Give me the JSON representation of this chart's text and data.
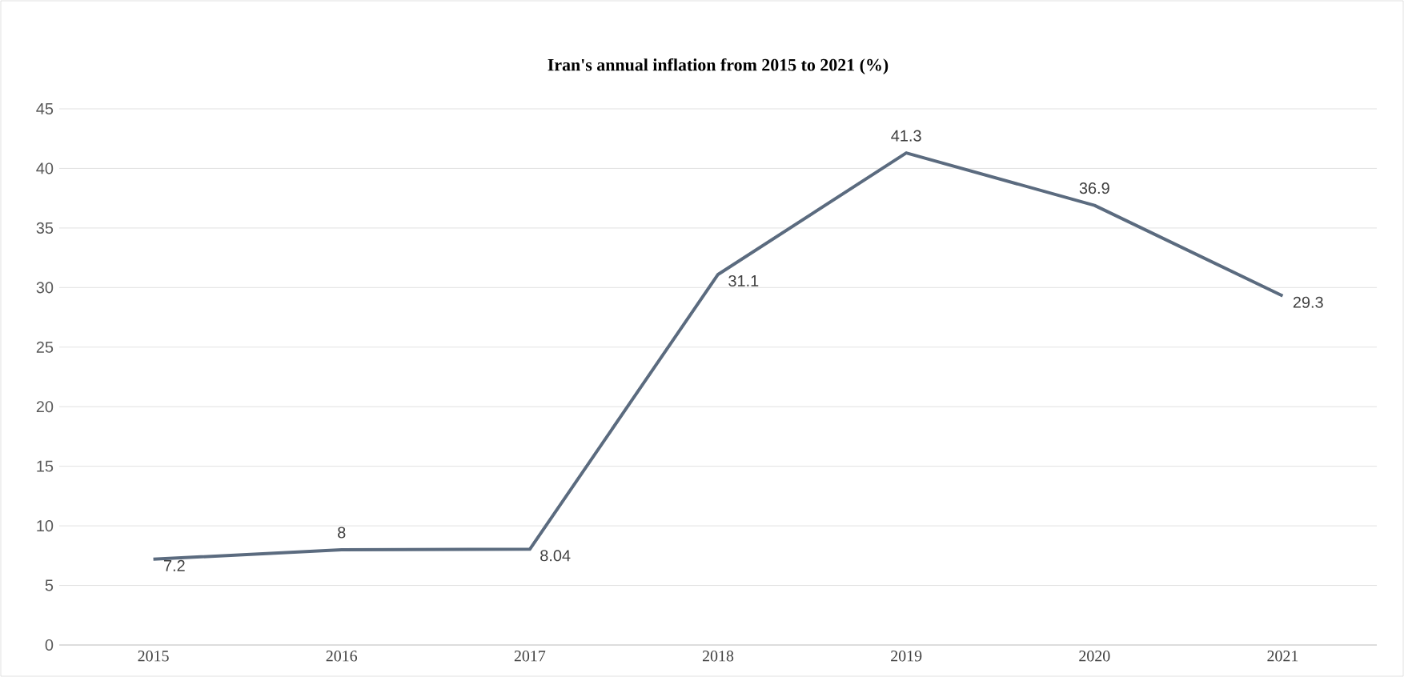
{
  "chart_data": {
    "type": "line",
    "title": "Iran's annual inflation from 2015 to 2021 (%)",
    "categories": [
      "2015",
      "2016",
      "2017",
      "2018",
      "2019",
      "2020",
      "2021"
    ],
    "values": [
      7.2,
      8,
      8.04,
      31.1,
      41.3,
      36.9,
      29.3
    ],
    "color": "#5b6b7f",
    "ylim": [
      0,
      45
    ],
    "yticks": [
      0,
      5,
      10,
      15,
      20,
      25,
      30,
      35,
      40,
      45
    ],
    "grid": "y",
    "data_labels": true,
    "marker": "none",
    "line_style": "solid"
  }
}
